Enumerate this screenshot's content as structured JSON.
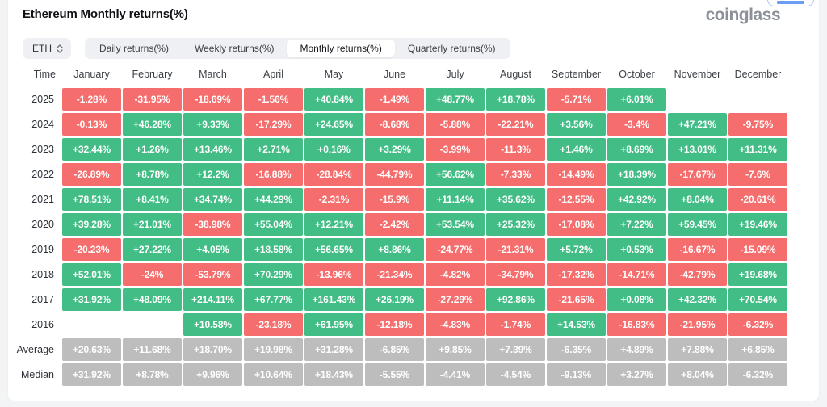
{
  "page": {
    "title": "Ethereum Monthly returns(%)",
    "brand": "coinglass"
  },
  "controls": {
    "symbol_selector": {
      "value": "ETH"
    },
    "tabs": [
      {
        "label": "Daily returns(%)",
        "active": false
      },
      {
        "label": "Weekly returns(%)",
        "active": false
      },
      {
        "label": "Monthly returns(%)",
        "active": true
      },
      {
        "label": "Quarterly returns(%)",
        "active": false
      }
    ]
  },
  "colors": {
    "positive": "#42bd85",
    "negative": "#f56d6d",
    "summary": "#bdbdbd",
    "accent": "#3a7df0"
  },
  "table": {
    "columns": [
      "Time",
      "January",
      "February",
      "March",
      "April",
      "May",
      "June",
      "July",
      "August",
      "September",
      "October",
      "November",
      "December"
    ],
    "rows": [
      {
        "label": "2025",
        "kind": "year",
        "values": [
          "-1.28%",
          "-31.95%",
          "-18.69%",
          "-1.56%",
          "+40.84%",
          "-1.49%",
          "+48.77%",
          "+18.78%",
          "-5.71%",
          "+6.01%",
          "",
          ""
        ]
      },
      {
        "label": "2024",
        "kind": "year",
        "values": [
          "-0.13%",
          "+46.28%",
          "+9.33%",
          "-17.29%",
          "+24.65%",
          "-8.68%",
          "-5.88%",
          "-22.21%",
          "+3.56%",
          "-3.4%",
          "+47.21%",
          "-9.75%"
        ]
      },
      {
        "label": "2023",
        "kind": "year",
        "values": [
          "+32.44%",
          "+1.26%",
          "+13.46%",
          "+2.71%",
          "+0.16%",
          "+3.29%",
          "-3.99%",
          "-11.3%",
          "+1.46%",
          "+8.69%",
          "+13.01%",
          "+11.31%"
        ]
      },
      {
        "label": "2022",
        "kind": "year",
        "values": [
          "-26.89%",
          "+8.78%",
          "+12.2%",
          "-16.88%",
          "-28.84%",
          "-44.79%",
          "+56.62%",
          "-7.33%",
          "-14.49%",
          "+18.39%",
          "-17.67%",
          "-7.6%"
        ]
      },
      {
        "label": "2021",
        "kind": "year",
        "values": [
          "+78.51%",
          "+8.41%",
          "+34.74%",
          "+44.29%",
          "-2.31%",
          "-15.9%",
          "+11.14%",
          "+35.62%",
          "-12.55%",
          "+42.92%",
          "+8.04%",
          "-20.61%"
        ]
      },
      {
        "label": "2020",
        "kind": "year",
        "values": [
          "+39.28%",
          "+21.01%",
          "-38.98%",
          "+55.04%",
          "+12.21%",
          "-2.42%",
          "+53.54%",
          "+25.32%",
          "-17.08%",
          "+7.22%",
          "+59.45%",
          "+19.46%"
        ]
      },
      {
        "label": "2019",
        "kind": "year",
        "values": [
          "-20.23%",
          "+27.22%",
          "+4.05%",
          "+18.58%",
          "+56.65%",
          "+8.86%",
          "-24.77%",
          "-21.31%",
          "+5.72%",
          "+0.53%",
          "-16.67%",
          "-15.09%"
        ]
      },
      {
        "label": "2018",
        "kind": "year",
        "values": [
          "+52.01%",
          "-24%",
          "-53.79%",
          "+70.29%",
          "-13.96%",
          "-21.34%",
          "-4.82%",
          "-34.79%",
          "-17.32%",
          "-14.71%",
          "-42.79%",
          "+19.68%"
        ]
      },
      {
        "label": "2017",
        "kind": "year",
        "values": [
          "+31.92%",
          "+48.09%",
          "+214.11%",
          "+67.77%",
          "+161.43%",
          "+26.19%",
          "-27.29%",
          "+92.86%",
          "-21.65%",
          "+0.08%",
          "+42.32%",
          "+70.54%"
        ]
      },
      {
        "label": "2016",
        "kind": "year",
        "values": [
          "",
          "",
          "+10.58%",
          "-23.18%",
          "+61.95%",
          "-12.18%",
          "-4.83%",
          "-1.74%",
          "+14.53%",
          "-16.83%",
          "-21.95%",
          "-6.32%"
        ]
      },
      {
        "label": "Average",
        "kind": "summary",
        "values": [
          "+20.63%",
          "+11.68%",
          "+18.70%",
          "+19.98%",
          "+31.28%",
          "-6.85%",
          "+9.85%",
          "+7.39%",
          "-6.35%",
          "+4.89%",
          "+7.88%",
          "+6.85%"
        ]
      },
      {
        "label": "Median",
        "kind": "summary",
        "values": [
          "+31.92%",
          "+8.78%",
          "+9.96%",
          "+10.64%",
          "+18.43%",
          "-5.55%",
          "-4.41%",
          "-4.54%",
          "-9.13%",
          "+3.27%",
          "+8.04%",
          "-6.32%"
        ]
      }
    ]
  }
}
